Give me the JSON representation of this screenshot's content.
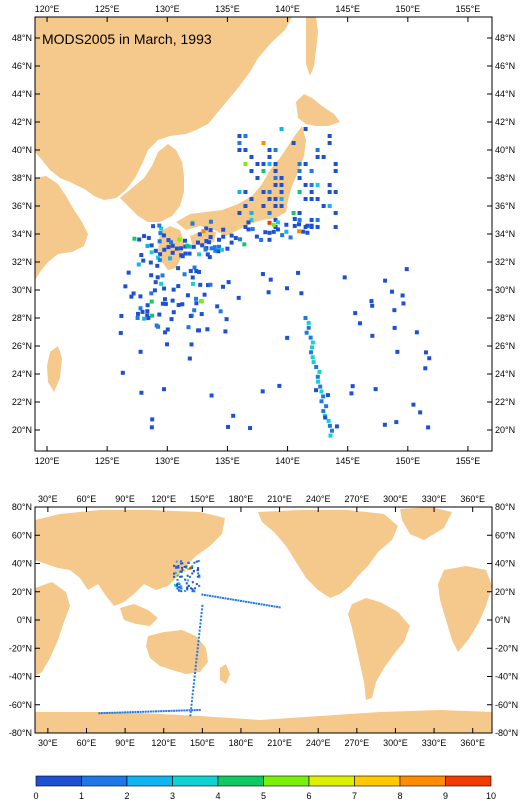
{
  "top_map": {
    "title": "MODS2005 in March, 1993",
    "lon_ticks": [
      "120°E",
      "125°E",
      "130°E",
      "135°E",
      "140°E",
      "145°E",
      "150°E",
      "155°E"
    ],
    "lat_ticks": [
      "48°N",
      "46°N",
      "44°N",
      "42°N",
      "40°N",
      "38°N",
      "36°N",
      "34°N",
      "32°N",
      "30°N",
      "28°N",
      "26°N",
      "24°N",
      "22°N",
      "20°N"
    ],
    "lon_range": [
      119,
      157
    ],
    "lat_range": [
      18.5,
      49.5
    ]
  },
  "bottom_map": {
    "lon_ticks": [
      "30°E",
      "60°E",
      "90°E",
      "120°E",
      "150°E",
      "180°E",
      "210°E",
      "240°E",
      "270°E",
      "300°E",
      "330°E",
      "360°E"
    ],
    "lat_ticks": [
      "80°N",
      "60°N",
      "40°N",
      "20°N",
      "0°N",
      "-20°N",
      "-40°N",
      "-60°N",
      "-80°N"
    ],
    "lon_range": [
      20,
      375
    ],
    "lat_range": [
      -80,
      80
    ]
  },
  "colorbar": {
    "labels": [
      "0",
      "1",
      "2",
      "3",
      "4",
      "5",
      "6",
      "7",
      "8",
      "9",
      "10"
    ],
    "colors": [
      "#1e50d2",
      "#1e78e6",
      "#10b4f0",
      "#10d2d2",
      "#10c864",
      "#10e61e",
      "#78f00a",
      "#dcf000",
      "#ffc800",
      "#ff8c00",
      "#f03c00"
    ]
  },
  "colors": {
    "land": "#f5c88c",
    "frame": "#000000"
  }
}
